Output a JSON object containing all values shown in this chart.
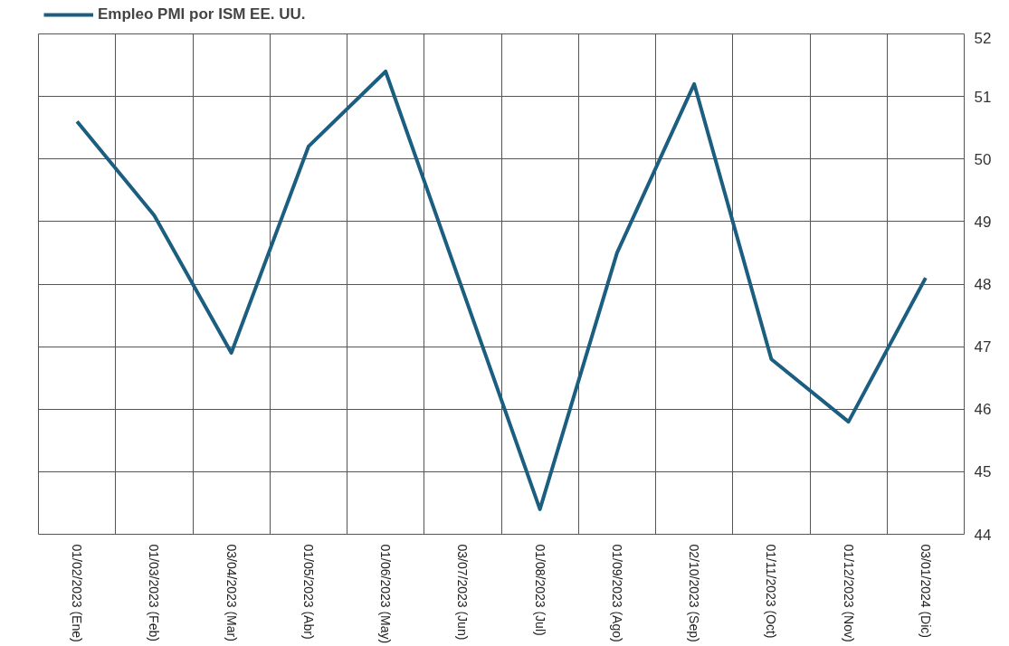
{
  "chart_data": {
    "type": "line",
    "categories": [
      "01/02/2023 (Ene)",
      "01/03/2023 (Feb)",
      "03/04/2023 (Mar)",
      "01/05/2023 (Abr)",
      "01/06/2023 (May)",
      "03/07/2023 (Jun)",
      "01/08/2023 (Jul)",
      "01/09/2023 (Ago)",
      "02/10/2023 (Sep)",
      "01/11/2023 (Oct)",
      "01/12/2023 (Nov)",
      "03/01/2024 (Dic)"
    ],
    "series": [
      {
        "name": "Empleo PMI por ISM EE. UU.",
        "color": "#1b5e80",
        "values": [
          50.6,
          49.1,
          46.9,
          50.2,
          51.4,
          47.9,
          44.4,
          48.5,
          51.2,
          46.8,
          45.8,
          48.1
        ]
      }
    ],
    "ylim": [
      44,
      52
    ],
    "yticks": [
      44,
      45,
      46,
      47,
      48,
      49,
      50,
      51,
      52
    ],
    "grid": true,
    "legend": "top left",
    "marker": "none",
    "line_style": "solid"
  }
}
